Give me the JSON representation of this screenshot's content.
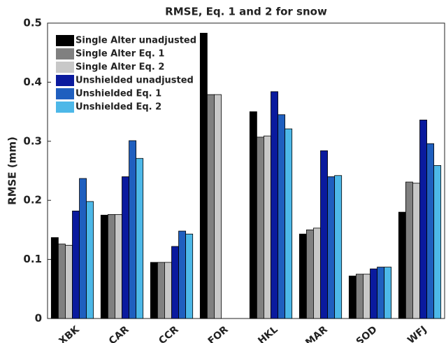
{
  "chart_data": {
    "type": "bar",
    "title": "RMSE, Eq. 1 and 2 for snow",
    "y_label": "RMSE (mm)",
    "categories": [
      "XBK",
      "CAR",
      "CCR",
      "FOR",
      "HKL",
      "MAR",
      "SOD",
      "WFJ"
    ],
    "series": [
      {
        "name": "Single Alter unadjusted",
        "color": "#000000",
        "values": [
          0.137,
          0.175,
          0.095,
          0.483,
          0.35,
          0.143,
          0.072,
          0.18
        ]
      },
      {
        "name": "Single Alter Eq. 1",
        "color": "#808080",
        "values": [
          0.126,
          0.176,
          0.095,
          0.379,
          0.307,
          0.15,
          0.075,
          0.231
        ]
      },
      {
        "name": "Single Alter Eq. 2",
        "color": "#c8c8c8",
        "values": [
          0.124,
          0.176,
          0.095,
          0.379,
          0.309,
          0.153,
          0.075,
          0.229
        ]
      },
      {
        "name": "Unshielded unadjusted",
        "color": "#0a1a9e",
        "values": [
          0.182,
          0.24,
          0.122,
          null,
          0.384,
          0.284,
          0.084,
          0.336
        ]
      },
      {
        "name": "Unshielded Eq. 1",
        "color": "#1f5fbf",
        "values": [
          0.237,
          0.301,
          0.148,
          null,
          0.345,
          0.24,
          0.087,
          0.296
        ]
      },
      {
        "name": "Unshielded Eq. 2",
        "color": "#4db8e8",
        "values": [
          0.198,
          0.271,
          0.143,
          null,
          0.321,
          0.242,
          0.087,
          0.259
        ]
      }
    ],
    "ylim": [
      0,
      0.5
    ],
    "yticks": [
      0,
      0.1,
      0.2,
      0.3,
      0.4,
      0.5
    ],
    "grid": false,
    "legend": "upper-left"
  }
}
